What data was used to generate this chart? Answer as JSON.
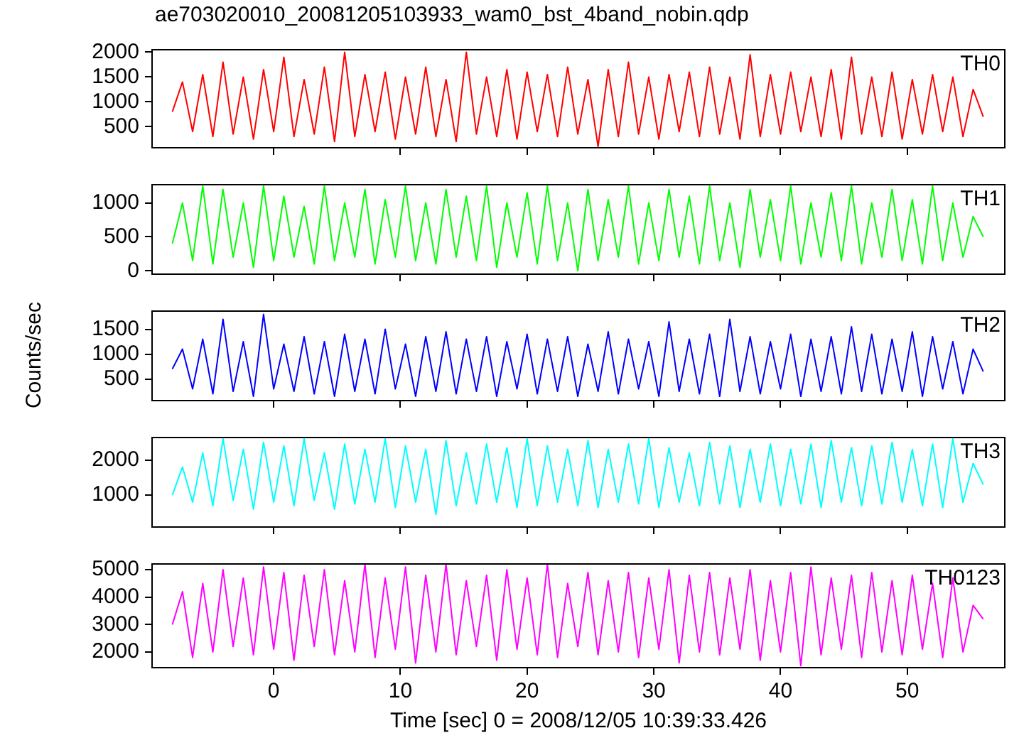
{
  "chart_data": [
    {
      "type": "line",
      "title": "ae703020010_20081205103933_wam0_bst_4band_nobin.qdp",
      "tick_labels": "y",
      "xlim": [
        -9.6,
        57.7
      ],
      "xticks": [
        0,
        10,
        20,
        30,
        40,
        50
      ],
      "ylim": [
        75,
        2050
      ],
      "yticks": [
        500,
        1000,
        1500,
        2000
      ],
      "x": [
        -8,
        -7.2,
        -6.4,
        -5.6,
        -4.8,
        -4,
        -3.2,
        -2.4,
        -1.6,
        -0.8,
        0,
        0.8,
        1.6,
        2.4,
        3.2,
        4,
        4.8,
        5.6,
        6.4,
        7.2,
        8,
        8.8,
        9.6,
        10.4,
        11.2,
        12,
        12.8,
        13.6,
        14.4,
        15.2,
        16,
        16.8,
        17.6,
        18.4,
        19.2,
        20,
        20.8,
        21.6,
        22.4,
        23.2,
        24,
        24.8,
        25.6,
        26.4,
        27.2,
        28,
        28.8,
        29.6,
        30.4,
        31.2,
        32,
        32.8,
        33.6,
        34.4,
        35.2,
        36,
        36.8,
        37.6,
        38.4,
        39.2,
        40,
        40.8,
        41.6,
        42.4,
        43.2,
        44,
        44.8,
        45.6,
        46.4,
        47.2,
        48,
        48.8,
        49.6,
        50.4,
        51.2,
        52,
        52.8,
        53.6,
        54.4,
        55.2,
        56
      ],
      "series": [
        {
          "name": "TH0",
          "color": "#ff0000",
          "values": [
            800,
            1400,
            400,
            1550,
            300,
            1800,
            350,
            1500,
            250,
            1650,
            400,
            1900,
            300,
            1450,
            350,
            1700,
            200,
            2000,
            300,
            1550,
            400,
            1600,
            250,
            1500,
            350,
            1700,
            300,
            1450,
            200,
            2000,
            350,
            1500,
            300,
            1650,
            250,
            1600,
            400,
            1550,
            300,
            1700,
            350,
            1450,
            100,
            1650,
            300,
            1800,
            350,
            1500,
            250,
            1550,
            400,
            1600,
            300,
            1700,
            350,
            1500,
            250,
            1950,
            300,
            1550,
            350,
            1600,
            400,
            1500,
            300,
            1650,
            250,
            1900,
            350,
            1500,
            300,
            1600,
            250,
            1450,
            350,
            1550,
            400,
            1500,
            300,
            1250,
            700
          ]
        }
      ]
    },
    {
      "type": "line",
      "tick_labels": "y",
      "xlim": [
        -9.6,
        57.7
      ],
      "xticks": [
        0,
        10,
        20,
        30,
        40,
        50
      ],
      "ylim": [
        -50,
        1270
      ],
      "yticks": [
        0,
        500,
        1000
      ],
      "x": [
        -8,
        -7.2,
        -6.4,
        -5.6,
        -4.8,
        -4,
        -3.2,
        -2.4,
        -1.6,
        -0.8,
        0,
        0.8,
        1.6,
        2.4,
        3.2,
        4,
        4.8,
        5.6,
        6.4,
        7.2,
        8,
        8.8,
        9.6,
        10.4,
        11.2,
        12,
        12.8,
        13.6,
        14.4,
        15.2,
        16,
        16.8,
        17.6,
        18.4,
        19.2,
        20,
        20.8,
        21.6,
        22.4,
        23.2,
        24,
        24.8,
        25.6,
        26.4,
        27.2,
        28,
        28.8,
        29.6,
        30.4,
        31.2,
        32,
        32.8,
        33.6,
        34.4,
        35.2,
        36,
        36.8,
        37.6,
        38.4,
        39.2,
        40,
        40.8,
        41.6,
        42.4,
        43.2,
        44,
        44.8,
        45.6,
        46.4,
        47.2,
        48,
        48.8,
        49.6,
        50.4,
        51.2,
        52,
        52.8,
        53.6,
        54.4,
        55.2,
        56
      ],
      "series": [
        {
          "name": "TH1",
          "color": "#00ff00",
          "values": [
            400,
            1000,
            150,
            1250,
            100,
            1200,
            200,
            1000,
            50,
            1250,
            150,
            1100,
            200,
            950,
            100,
            1250,
            150,
            1000,
            200,
            1200,
            100,
            1050,
            200,
            1250,
            150,
            1000,
            100,
            1200,
            200,
            1100,
            150,
            1250,
            50,
            1000,
            200,
            1150,
            100,
            1250,
            150,
            1000,
            0,
            1200,
            150,
            1050,
            200,
            1250,
            100,
            1000,
            150,
            1200,
            200,
            1100,
            100,
            1250,
            150,
            1000,
            50,
            1200,
            200,
            1050,
            150,
            1250,
            100,
            1000,
            200,
            1150,
            150,
            1250,
            100,
            1000,
            200,
            1200,
            150,
            1050,
            100,
            1250,
            150,
            1000,
            200,
            800,
            500
          ]
        }
      ]
    },
    {
      "type": "line",
      "tick_labels": "y",
      "ylabel": "Counts/sec",
      "xlim": [
        -9.6,
        57.7
      ],
      "xticks": [
        0,
        10,
        20,
        30,
        40,
        50
      ],
      "ylim": [
        65,
        1865
      ],
      "yticks": [
        500,
        1000,
        1500
      ],
      "x": [
        -8,
        -7.2,
        -6.4,
        -5.6,
        -4.8,
        -4,
        -3.2,
        -2.4,
        -1.6,
        -0.8,
        0,
        0.8,
        1.6,
        2.4,
        3.2,
        4,
        4.8,
        5.6,
        6.4,
        7.2,
        8,
        8.8,
        9.6,
        10.4,
        11.2,
        12,
        12.8,
        13.6,
        14.4,
        15.2,
        16,
        16.8,
        17.6,
        18.4,
        19.2,
        20,
        20.8,
        21.6,
        22.4,
        23.2,
        24,
        24.8,
        25.6,
        26.4,
        27.2,
        28,
        28.8,
        29.6,
        30.4,
        31.2,
        32,
        32.8,
        33.6,
        34.4,
        35.2,
        36,
        36.8,
        37.6,
        38.4,
        39.2,
        40,
        40.8,
        41.6,
        42.4,
        43.2,
        44,
        44.8,
        45.6,
        46.4,
        47.2,
        48,
        48.8,
        49.6,
        50.4,
        51.2,
        52,
        52.8,
        53.6,
        54.4,
        55.2,
        56
      ],
      "series": [
        {
          "name": "TH2",
          "color": "#0000ff",
          "values": [
            700,
            1100,
            300,
            1300,
            200,
            1700,
            250,
            1250,
            150,
            1800,
            300,
            1200,
            250,
            1350,
            200,
            1250,
            150,
            1400,
            250,
            1300,
            200,
            1500,
            300,
            1200,
            150,
            1350,
            250,
            1450,
            200,
            1300,
            250,
            1350,
            150,
            1250,
            300,
            1400,
            200,
            1300,
            250,
            1350,
            150,
            1200,
            250,
            1450,
            200,
            1300,
            300,
            1250,
            150,
            1650,
            250,
            1300,
            200,
            1400,
            150,
            1700,
            250,
            1350,
            200,
            1250,
            300,
            1400,
            150,
            1300,
            250,
            1350,
            200,
            1550,
            250,
            1400,
            200,
            1300,
            250,
            1450,
            150,
            1350,
            300,
            1250,
            200,
            1100,
            650
          ]
        }
      ]
    },
    {
      "type": "line",
      "tick_labels": "y",
      "xlim": [
        -9.6,
        57.7
      ],
      "xticks": [
        0,
        10,
        20,
        30,
        40,
        50
      ],
      "ylim": [
        95,
        2635
      ],
      "yticks": [
        1000,
        2000
      ],
      "x": [
        -8,
        -7.2,
        -6.4,
        -5.6,
        -4.8,
        -4,
        -3.2,
        -2.4,
        -1.6,
        -0.8,
        0,
        0.8,
        1.6,
        2.4,
        3.2,
        4,
        4.8,
        5.6,
        6.4,
        7.2,
        8,
        8.8,
        9.6,
        10.4,
        11.2,
        12,
        12.8,
        13.6,
        14.4,
        15.2,
        16,
        16.8,
        17.6,
        18.4,
        19.2,
        20,
        20.8,
        21.6,
        22.4,
        23.2,
        24,
        24.8,
        25.6,
        26.4,
        27.2,
        28,
        28.8,
        29.6,
        30.4,
        31.2,
        32,
        32.8,
        33.6,
        34.4,
        35.2,
        36,
        36.8,
        37.6,
        38.4,
        39.2,
        40,
        40.8,
        41.6,
        42.4,
        43.2,
        44,
        44.8,
        45.6,
        46.4,
        47.2,
        48,
        48.8,
        49.6,
        50.4,
        51.2,
        52,
        52.8,
        53.6,
        54.4,
        55.2,
        56
      ],
      "series": [
        {
          "name": "TH3",
          "color": "#00ffff",
          "values": [
            1000,
            1800,
            800,
            2200,
            700,
            2600,
            850,
            2300,
            600,
            2500,
            800,
            2400,
            700,
            2600,
            850,
            2200,
            600,
            2450,
            750,
            2300,
            800,
            2600,
            650,
            2400,
            800,
            2300,
            450,
            2550,
            700,
            2200,
            750,
            2450,
            800,
            2350,
            650,
            2600,
            700,
            2400,
            800,
            2300,
            700,
            2550,
            650,
            2300,
            800,
            2450,
            750,
            2600,
            650,
            2350,
            800,
            2200,
            700,
            2500,
            750,
            2400,
            650,
            2300,
            800,
            2450,
            700,
            2300,
            750,
            2450,
            650,
            2550,
            800,
            2350,
            700,
            2400,
            750,
            2500,
            800,
            2300,
            700,
            2450,
            650,
            2600,
            800,
            1900,
            1300
          ]
        }
      ]
    },
    {
      "type": "line",
      "xlabel": "Time [sec] 0 = 2008/12/05 10:39:33.426",
      "xlim": [
        -9.6,
        57.7
      ],
      "xticks": [
        0,
        10,
        20,
        30,
        40,
        50
      ],
      "ylim": [
        1430,
        5210
      ],
      "yticks": [
        2000,
        3000,
        4000,
        5000
      ],
      "x": [
        -8,
        -7.2,
        -6.4,
        -5.6,
        -4.8,
        -4,
        -3.2,
        -2.4,
        -1.6,
        -0.8,
        0,
        0.8,
        1.6,
        2.4,
        3.2,
        4,
        4.8,
        5.6,
        6.4,
        7.2,
        8,
        8.8,
        9.6,
        10.4,
        11.2,
        12,
        12.8,
        13.6,
        14.4,
        15.2,
        16,
        16.8,
        17.6,
        18.4,
        19.2,
        20,
        20.8,
        21.6,
        22.4,
        23.2,
        24,
        24.8,
        25.6,
        26.4,
        27.2,
        28,
        28.8,
        29.6,
        30.4,
        31.2,
        32,
        32.8,
        33.6,
        34.4,
        35.2,
        36,
        36.8,
        37.6,
        38.4,
        39.2,
        40,
        40.8,
        41.6,
        42.4,
        43.2,
        44,
        44.8,
        45.6,
        46.4,
        47.2,
        48,
        48.8,
        49.6,
        50.4,
        51.2,
        52,
        52.8,
        53.6,
        54.4,
        55.2,
        56
      ],
      "series": [
        {
          "name": "TH0123",
          "color": "#ff00ff",
          "values": [
            3000,
            4200,
            1800,
            4500,
            2000,
            5000,
            2200,
            4700,
            1900,
            5100,
            2100,
            4900,
            1700,
            4800,
            2200,
            5000,
            1900,
            4600,
            2000,
            5200,
            1800,
            4700,
            2100,
            5100,
            1600,
            4800,
            2000,
            5200,
            1900,
            4600,
            2200,
            4800,
            1700,
            5000,
            2100,
            4700,
            1900,
            5200,
            1800,
            4500,
            2200,
            4900,
            1900,
            4600,
            2000,
            4900,
            1800,
            4700,
            2100,
            5000,
            1600,
            4800,
            2000,
            4900,
            1900,
            4700,
            2100,
            5000,
            1700,
            4600,
            2000,
            4900,
            1500,
            5100,
            1900,
            4700,
            2100,
            4800,
            1800,
            4900,
            2000,
            4600,
            1900,
            4800,
            2100,
            4500,
            1800,
            4700,
            2000,
            3700,
            3200
          ]
        }
      ]
    }
  ]
}
